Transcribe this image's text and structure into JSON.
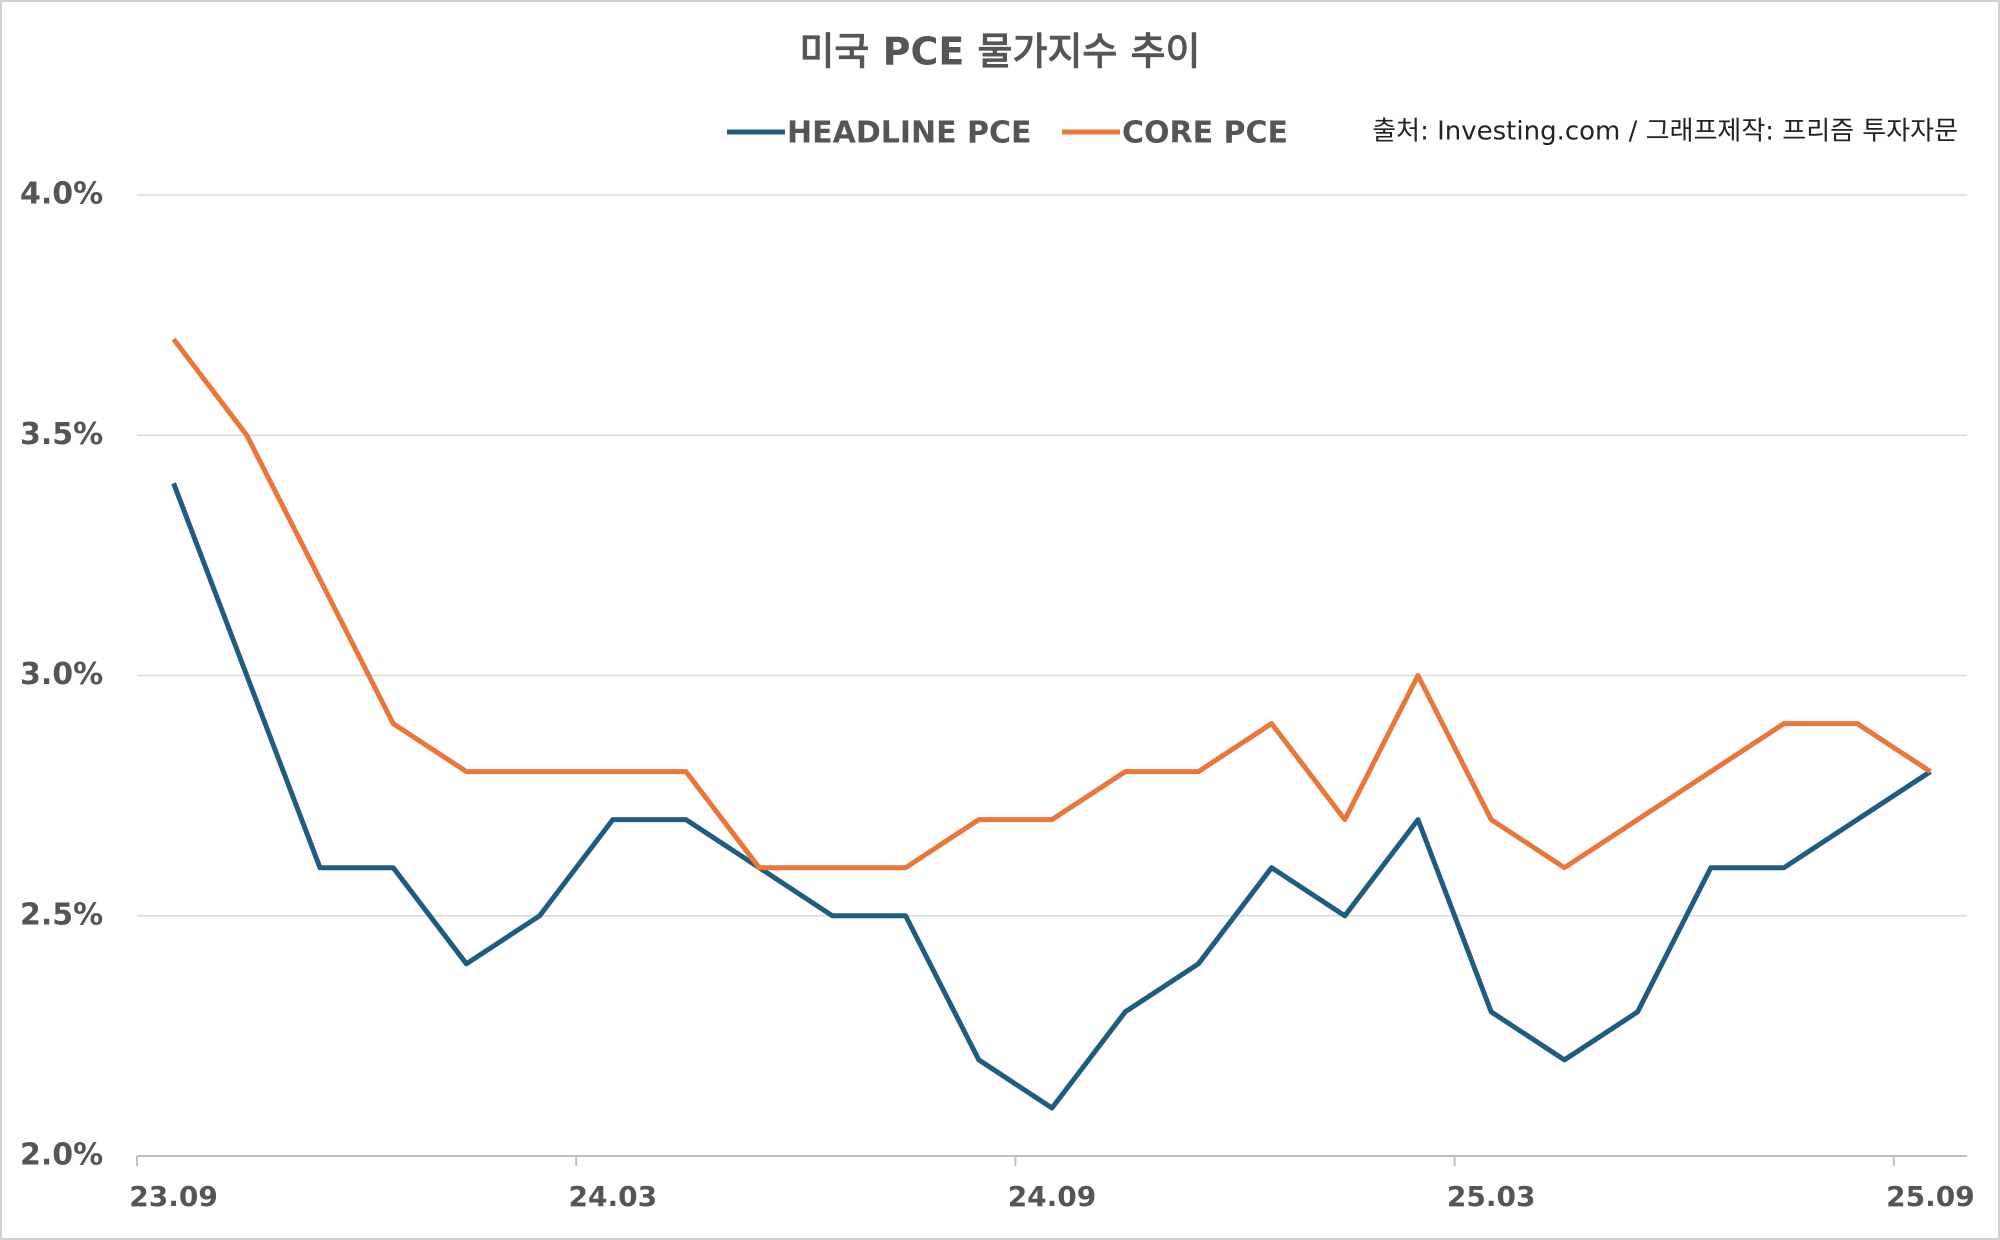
{
  "chart_data": {
    "type": "line",
    "title": "미국 PCE 물가지수 추이",
    "source": "출처: Investing.com / 그래프제작: 프리즘 투자자문",
    "categories": [
      "23.09",
      null,
      null,
      null,
      null,
      null,
      "24.03",
      null,
      null,
      null,
      null,
      null,
      "24.09",
      null,
      null,
      null,
      null,
      null,
      "25.03",
      null,
      null,
      null,
      null,
      null,
      "25.09"
    ],
    "series": [
      {
        "name": "HEADLINE PCE",
        "color": "#1f5c80",
        "values": [
          3.4,
          3.0,
          2.6,
          2.6,
          2.4,
          2.5,
          2.7,
          2.7,
          2.6,
          2.5,
          2.5,
          2.2,
          2.1,
          2.3,
          2.4,
          2.6,
          2.5,
          2.7,
          2.3,
          2.2,
          2.3,
          2.6,
          2.6,
          2.7,
          2.8
        ]
      },
      {
        "name": "CORE PCE",
        "color": "#e9773a",
        "values": [
          3.7,
          3.5,
          3.2,
          2.9,
          2.8,
          2.8,
          2.8,
          2.8,
          2.6,
          2.6,
          2.6,
          2.7,
          2.7,
          2.8,
          2.8,
          2.9,
          2.7,
          3.0,
          2.7,
          2.6,
          2.7,
          2.8,
          2.9,
          2.9,
          2.8
        ]
      }
    ],
    "ylim": [
      2.0,
      4.0
    ],
    "yticks": [
      {
        "value": 2.0,
        "label": "2.0%"
      },
      {
        "value": 2.5,
        "label": "2.5%"
      },
      {
        "value": 3.0,
        "label": "3.0%"
      },
      {
        "value": 3.5,
        "label": "3.5%"
      },
      {
        "value": 4.0,
        "label": "4.0%"
      }
    ],
    "grid": true
  }
}
